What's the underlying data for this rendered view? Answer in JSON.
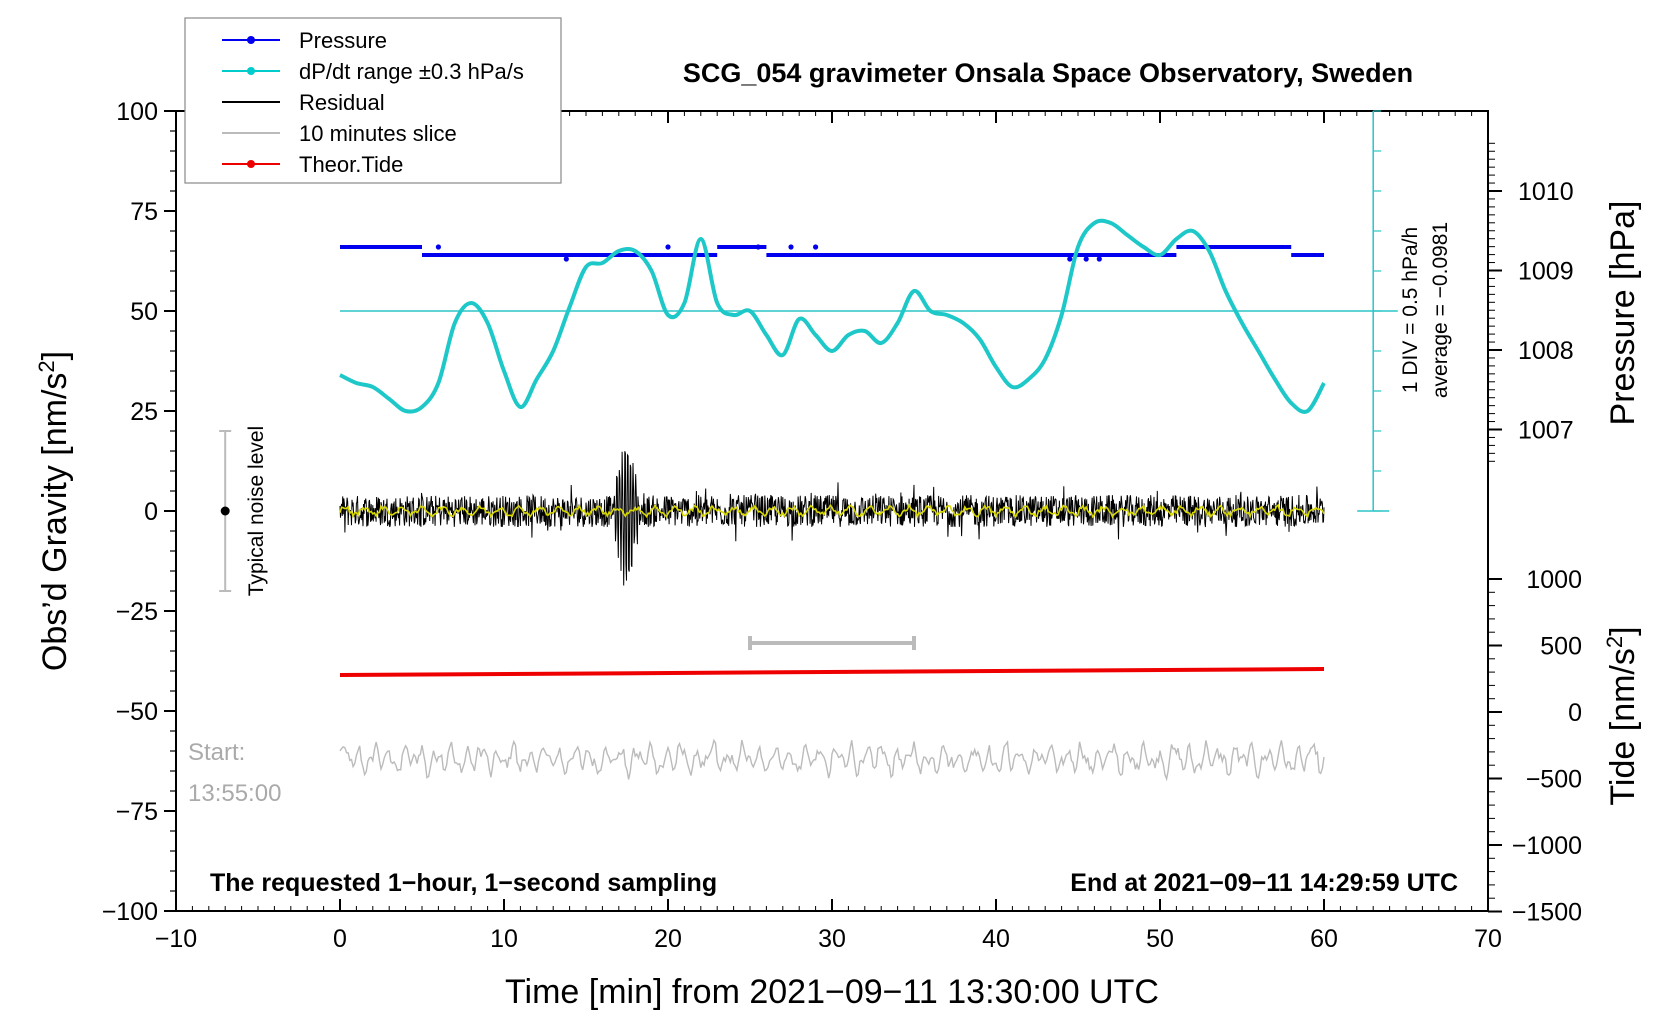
{
  "chart_data": {
    "type": "line",
    "title": "SCG_054 gravimeter Onsala Space Observatory, Sweden",
    "xlabel": "Time [min] from 2021−09−11 13:30:00 UTC",
    "ylabel_left": "Obs’d Gravity [nm/s",
    "ylabel_left_sup": "2",
    "ylabel_left_close": "]",
    "ylabel_right_pressure": "Pressure [hPa]",
    "ylabel_right_tide": "Tide [nm/s",
    "ylabel_right_tide_sup": "2",
    "ylabel_right_tide_close": "]",
    "xlim": [
      -10,
      70
    ],
    "ylim": [
      -100,
      100
    ],
    "x_ticks": [
      -10,
      0,
      10,
      20,
      30,
      40,
      50,
      60,
      70
    ],
    "x_tick_labels": [
      "−10",
      "0",
      "10",
      "20",
      "30",
      "40",
      "50",
      "60",
      "70"
    ],
    "y_ticks": [
      100,
      75,
      50,
      25,
      0,
      -25,
      -50,
      -75,
      -100
    ],
    "y_tick_labels": [
      "100",
      "75",
      "50",
      "25",
      "0",
      "−25",
      "−50",
      "−75",
      "−100"
    ],
    "pressure_axis": {
      "ticks": [
        1007,
        1008,
        1009,
        1010
      ],
      "tick_labels": [
        "1007",
        "1008",
        "1009",
        "1010"
      ]
    },
    "tide_axis": {
      "ticks": [
        1000,
        500,
        0,
        -500,
        -1000,
        -1500
      ],
      "tick_labels": [
        "1000",
        "500",
        "0",
        "−500",
        "−1000",
        "−1500"
      ]
    },
    "legend": {
      "position": "top-left",
      "entries": [
        {
          "label": "Pressure",
          "color": "#0000ee",
          "marker": true
        },
        {
          "label": "dP/dt range ±0.3 hPa/s",
          "color": "#00cccc",
          "marker": true
        },
        {
          "label": "Residual",
          "color": "#000000",
          "marker": false
        },
        {
          "label": "10 minutes slice",
          "color": "#bbbbbb",
          "marker": false
        },
        {
          "label": "Theor.Tide",
          "color": "#ee0000",
          "marker": true
        }
      ]
    },
    "annotations": {
      "noise_label": "Typical noise level",
      "noise_range": [
        -20,
        20
      ],
      "noise_x": -7,
      "div_label": "1 DIV = 0.5 hPa/h",
      "average_label": "average = −0.0981",
      "start_label": "Start:",
      "start_time": "13:55:00",
      "bottom_left_note": "The requested 1−hour, 1−second sampling",
      "bottom_right_note": "End at 2021−09−11 14:29:59 UTC",
      "slice_range": [
        25,
        35
      ],
      "slice_y": -33,
      "scale_bar_x": 63,
      "scale_bar_y_range": [
        0,
        100
      ],
      "reference_line_y": 50
    },
    "series": [
      {
        "name": "dP/dt",
        "color": "#1ec8c8",
        "x": [
          0,
          1,
          2,
          3,
          4,
          5,
          6,
          7,
          8,
          9,
          10,
          11,
          12,
          13,
          14,
          15,
          16,
          17,
          18,
          19,
          20,
          21,
          22,
          23,
          24,
          25,
          26,
          27,
          28,
          29,
          30,
          31,
          32,
          33,
          34,
          35,
          36,
          37,
          38,
          39,
          40,
          41,
          42,
          43,
          44,
          45,
          46,
          47,
          48,
          49,
          50,
          51,
          52,
          53,
          54,
          55,
          56,
          57,
          58,
          59,
          60
        ],
        "values": [
          34,
          32,
          31,
          28,
          25,
          26,
          32,
          47,
          52,
          47,
          35,
          26,
          33,
          40,
          51,
          61,
          62,
          65,
          65,
          60,
          49,
          52,
          68,
          52,
          49,
          50,
          44,
          39,
          48,
          44,
          40,
          44,
          45,
          42,
          47,
          55,
          50,
          49,
          47,
          43,
          36,
          31,
          33,
          38,
          49,
          66,
          72,
          72,
          69,
          66,
          64,
          68,
          70,
          65,
          55,
          47,
          40,
          33,
          27,
          25,
          32
        ]
      },
      {
        "name": "Pressure",
        "color": "#0000ee",
        "upper_level": 66,
        "lower_level": 64,
        "upper_segments": [
          [
            0,
            5
          ],
          [
            23,
            26
          ],
          [
            51,
            58
          ]
        ],
        "lower_segments": [
          [
            5,
            23
          ],
          [
            26,
            51
          ],
          [
            58,
            60
          ]
        ]
      },
      {
        "name": "Residual",
        "color": "#000000",
        "x_range": [
          0,
          60
        ],
        "amplitude": 4,
        "event_time": 17.5,
        "event_peak": 20,
        "event_trough": -19
      },
      {
        "name": "Smoothed residual",
        "color": "#d8d800",
        "x_range": [
          0,
          60
        ],
        "level": 0
      },
      {
        "name": "Theor.Tide",
        "color": "#ee0000",
        "x": [
          0,
          60
        ],
        "values": [
          -41,
          -39.5
        ]
      },
      {
        "name": "10 minutes slice",
        "color": "#bbbbbb",
        "x_range": [
          0,
          60
        ],
        "level": -62,
        "amplitude": 4
      }
    ]
  }
}
